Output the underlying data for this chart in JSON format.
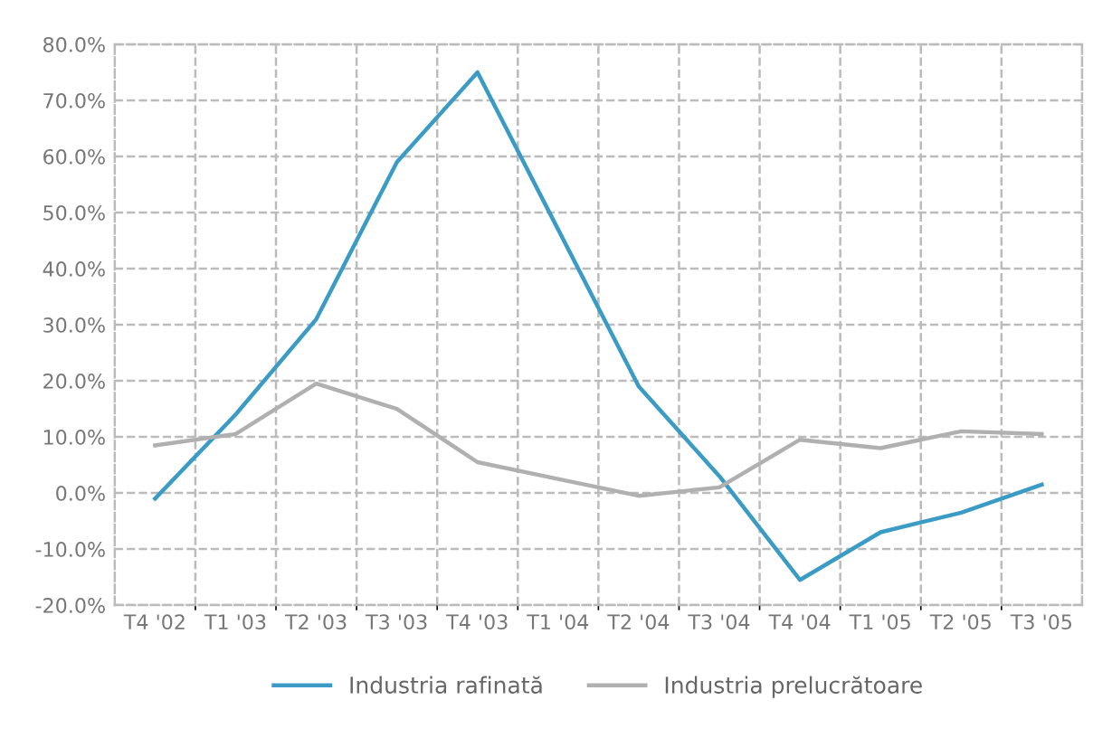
{
  "chart_data": {
    "type": "line",
    "categories": [
      "T4 '02",
      "T1 '03",
      "T2 '03",
      "T3 '03",
      "T4 '03",
      "T1 '04",
      "T2 '04",
      "T3 '04",
      "T4 '04",
      "T1 '05",
      "T2 '05",
      "T3 '05"
    ],
    "series": [
      {
        "name": "Industria rafinată",
        "color": "#3a9cc4",
        "values": [
          -1,
          14,
          31,
          59,
          75,
          47,
          19,
          3,
          -15.5,
          -7,
          -3.5,
          1.5
        ]
      },
      {
        "name": "Industria prelucrătoare",
        "color": "#b0b0b0",
        "values": [
          8.5,
          10.5,
          19.5,
          15,
          5.5,
          2.5,
          -0.5,
          1,
          9.5,
          8,
          11,
          10.5
        ]
      }
    ],
    "ylim": [
      -20,
      80
    ],
    "yticks": [
      {
        "value": -20,
        "label": "-20.0%"
      },
      {
        "value": -10,
        "label": "-10.0%"
      },
      {
        "value": 0,
        "label": "0.0%"
      },
      {
        "value": 10,
        "label": "10.0%"
      },
      {
        "value": 20,
        "label": "20.0%"
      },
      {
        "value": 30,
        "label": "30.0%"
      },
      {
        "value": 40,
        "label": "40.0%"
      },
      {
        "value": 50,
        "label": "50.0%"
      },
      {
        "value": 60,
        "label": "60.0%"
      },
      {
        "value": 70,
        "label": "70.0%"
      },
      {
        "value": 80,
        "label": "80.0%"
      }
    ],
    "grid": true,
    "legend": "bottom",
    "marker": "none",
    "line_style": "solid"
  }
}
